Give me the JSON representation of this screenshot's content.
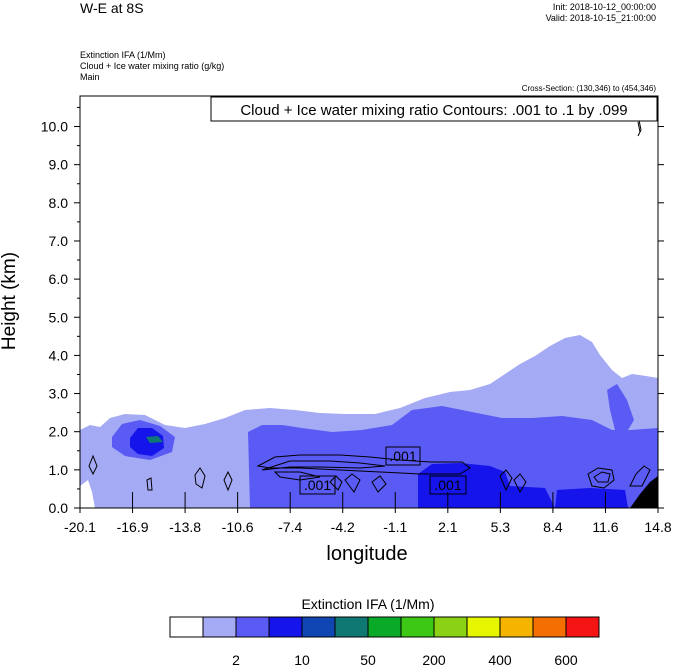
{
  "header": {
    "title": "W-E at 8S",
    "init": "Init: 2018-10-12_00:00:00",
    "valid": "Valid: 2018-10-15_21:00:00",
    "fields": [
      "Extinction IFA   (1/Mm)",
      "Cloud + Ice water mixing ratio   (g/kg)",
      "Main"
    ],
    "cross_section": "Cross-Section: (130,346) to (454,346)"
  },
  "chart_data": {
    "type": "heatmap",
    "title": "W-E at 8S",
    "contour_label": "Cloud + Ice water mixing ratio Contours: .001 to .1 by .099",
    "contour_values_shown": [
      ".001",
      ".001",
      ".001"
    ],
    "xlabel": "longitude",
    "ylabel": "Height (km)",
    "x_ticks": [
      "-20.1",
      "-16.9",
      "-13.8",
      "-10.6",
      "-7.4",
      "-4.2",
      "-1.1",
      "2.1",
      "5.3",
      "8.4",
      "11.6",
      "14.8"
    ],
    "xlim": [
      -20.1,
      14.8
    ],
    "y_ticks": [
      "0.0",
      "1.0",
      "2.0",
      "3.0",
      "4.0",
      "5.0",
      "6.0",
      "7.0",
      "8.0",
      "9.0",
      "10.0"
    ],
    "ylim": [
      0,
      10.8
    ],
    "colorbar": {
      "title": "Extinction IFA  (1/Mm)",
      "colors": [
        "#ffffff",
        "#a5aaf5",
        "#5a5af5",
        "#1414eb",
        "#0f46b4",
        "#0f7873",
        "#0aaa28",
        "#3cc814",
        "#8cd214",
        "#e6f500",
        "#f5b400",
        "#f56e00",
        "#f51414"
      ],
      "labels": [
        "2",
        "10",
        "50",
        "200",
        "400",
        "600"
      ],
      "label_after_box": [
        1,
        3,
        5,
        7,
        9,
        11
      ]
    }
  }
}
